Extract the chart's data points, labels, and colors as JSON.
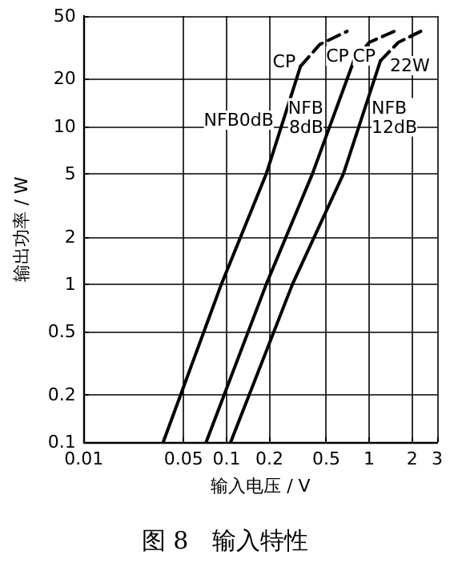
{
  "chart_data": {
    "type": "line",
    "title": "图 8　输入特性",
    "xlabel": "输入电压 / V",
    "ylabel": "输出功率 / W",
    "log": "xy",
    "grid": true,
    "marker": "none",
    "xlim": [
      0.01,
      3
    ],
    "xticks": [
      0.01,
      0.05,
      0.1,
      0.2,
      0.5,
      1,
      2,
      3
    ],
    "ylim": [
      0.1,
      50
    ],
    "yticks": [
      0.1,
      0.2,
      0.5,
      1,
      2,
      5,
      10,
      20,
      50
    ],
    "series": [
      {
        "name": "NFB0dB",
        "color": "#000000",
        "line_style": "solid",
        "x": [
          0.036,
          0.092,
          0.19,
          0.33
        ],
        "values": [
          0.1,
          1,
          5,
          24
        ]
      },
      {
        "name": "NFB\n8dB",
        "color": "#000000",
        "line_style": "solid",
        "x": [
          0.072,
          0.19,
          0.4,
          0.78
        ],
        "values": [
          0.1,
          1,
          5,
          26
        ]
      },
      {
        "name": "NFB\n12dB",
        "color": "#000000",
        "line_style": "solid",
        "x": [
          0.107,
          0.29,
          0.66,
          1.2
        ],
        "values": [
          0.1,
          1,
          5,
          26
        ]
      },
      {
        "color": "#000000",
        "line_style": "dashed",
        "x": [
          0.33,
          0.45,
          0.7
        ],
        "values": [
          24,
          33,
          40
        ]
      },
      {
        "color": "#000000",
        "line_style": "dashed",
        "x": [
          0.78,
          1.0,
          1.5
        ],
        "values": [
          26,
          34,
          40
        ]
      },
      {
        "color": "#000000",
        "line_style": "dashed",
        "x": [
          1.2,
          1.6,
          2.3
        ],
        "values": [
          26,
          34,
          40
        ]
      }
    ],
    "annotations": [
      {
        "text": "CP",
        "x": 0.33,
        "y": 24
      },
      {
        "text": "CP",
        "x": 0.78,
        "y": 26
      },
      {
        "text": "CP",
        "x": 1.2,
        "y": 26
      },
      "22W"
    ]
  }
}
